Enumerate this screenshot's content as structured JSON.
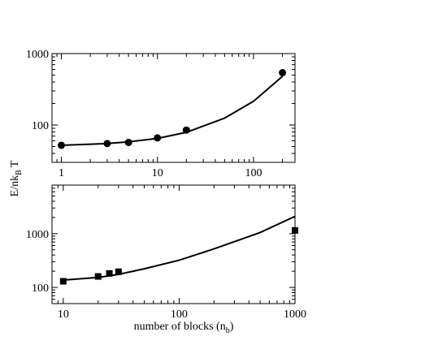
{
  "chart_data": [
    {
      "type": "scatter",
      "xscale": "log",
      "yscale": "log",
      "xlim": [
        0.8,
        270
      ],
      "ylim": [
        30,
        1000
      ],
      "xticks": [
        1,
        10,
        100
      ],
      "xtick_labels": [
        "1",
        "10",
        "100"
      ],
      "yticks": [
        100,
        1000
      ],
      "ytick_labels": [
        "100",
        "1000"
      ],
      "marker": "circle",
      "points": [
        {
          "x": 1,
          "y": 52
        },
        {
          "x": 3,
          "y": 55
        },
        {
          "x": 5,
          "y": 57
        },
        {
          "x": 10,
          "y": 66
        },
        {
          "x": 20,
          "y": 85
        },
        {
          "x": 200,
          "y": 540
        }
      ],
      "curve": [
        {
          "x": 1,
          "y": 52
        },
        {
          "x": 3,
          "y": 55
        },
        {
          "x": 5,
          "y": 58
        },
        {
          "x": 10,
          "y": 65
        },
        {
          "x": 20,
          "y": 79
        },
        {
          "x": 50,
          "y": 125
        },
        {
          "x": 100,
          "y": 215
        },
        {
          "x": 200,
          "y": 480
        }
      ]
    },
    {
      "type": "scatter",
      "xscale": "log",
      "yscale": "log",
      "xlim": [
        8,
        1000
      ],
      "ylim": [
        50,
        8000
      ],
      "xticks": [
        10,
        100,
        1000
      ],
      "xtick_labels": [
        "10",
        "100",
        "1000"
      ],
      "yticks": [
        100,
        1000
      ],
      "ytick_labels": [
        "100",
        "1000"
      ],
      "marker": "square",
      "points": [
        {
          "x": 10,
          "y": 130
        },
        {
          "x": 20,
          "y": 160
        },
        {
          "x": 25,
          "y": 182
        },
        {
          "x": 30,
          "y": 196
        },
        {
          "x": 1000,
          "y": 1150
        }
      ],
      "curve": [
        {
          "x": 10,
          "y": 137
        },
        {
          "x": 20,
          "y": 153
        },
        {
          "x": 30,
          "y": 175
        },
        {
          "x": 50,
          "y": 222
        },
        {
          "x": 100,
          "y": 320
        },
        {
          "x": 200,
          "y": 520
        },
        {
          "x": 500,
          "y": 1050
        },
        {
          "x": 1000,
          "y": 2100
        }
      ]
    }
  ],
  "labels": {
    "ylabel_main": "E/nk",
    "ylabel_sub": "B",
    "ylabel_tail": "T",
    "xlabel_main": "number of blocks (n",
    "xlabel_sub": "b",
    "xlabel_tail": ")"
  }
}
